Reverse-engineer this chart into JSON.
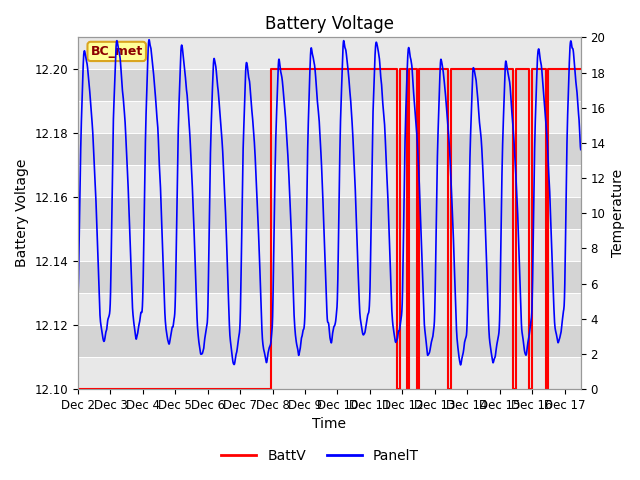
{
  "title": "Battery Voltage",
  "xlabel": "Time",
  "ylabel_left": "Battery Voltage",
  "ylabel_right": "Temperature",
  "annotation_text": "BC_met",
  "annotation_color": "#8B0000",
  "annotation_bg": "#FFFF99",
  "annotation_border": "#DAA520",
  "legend_entries": [
    "BattV",
    "PanelT"
  ],
  "batt_color": "red",
  "panel_color": "blue",
  "plot_bg": "#E8E8E8",
  "stripe_bg": "#D8D8D8",
  "ylim_left": [
    12.1,
    12.21
  ],
  "ylim_right": [
    0,
    20
  ],
  "xlim": [
    1.0,
    16.5
  ],
  "xtick_labels": [
    "Dec 2",
    "Dec 3",
    "Dec 4",
    "Dec 5",
    "Dec 6",
    "Dec 7",
    "Dec 8",
    "Dec 9",
    "Dec 10",
    "Dec 11",
    "Dec 12",
    "Dec 13",
    "Dec 14",
    "Dec 15",
    "Dec 16",
    "Dec 17"
  ],
  "xtick_positions": [
    1,
    2,
    3,
    4,
    5,
    6,
    7,
    8,
    9,
    10,
    11,
    12,
    13,
    14,
    15,
    16
  ],
  "title_fontsize": 12,
  "label_fontsize": 10,
  "tick_fontsize": 8.5
}
